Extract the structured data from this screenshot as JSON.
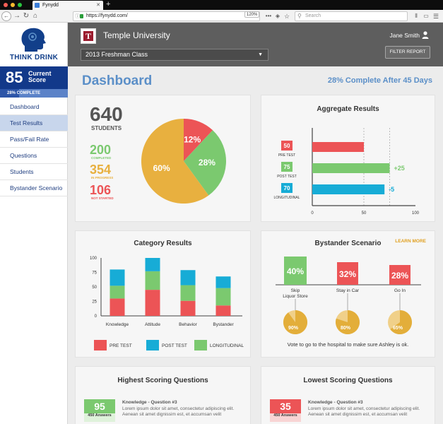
{
  "browser": {
    "tab_title": "Fynydd",
    "url": "https://fynydd.com/",
    "zoom": "120%",
    "search_placeholder": "Search"
  },
  "sidebar": {
    "brand": "THINK DRINK",
    "score_value": "85",
    "score_label": "Current Score",
    "progress_label": "28% COMPLETE",
    "progress": 0.28,
    "items": [
      {
        "label": "Dashboard"
      },
      {
        "label": "Test Results"
      },
      {
        "label": "Pass/Fail Rate"
      },
      {
        "label": "Questions"
      },
      {
        "label": "Students"
      },
      {
        "label": "Bystander Scenario"
      }
    ],
    "active_index": 1
  },
  "header": {
    "university": "Temple University",
    "logo_letter": "T",
    "class_select": "2013 Freshman Class",
    "user_name": "Jane Smith",
    "filter_button": "FILTER REPORT"
  },
  "main": {
    "title": "Dashboard",
    "completion": "28% Complete After 45 Days"
  },
  "students": {
    "total": "640",
    "total_label": "STUDENTS",
    "completed": "200",
    "completed_label": "COMPLETED",
    "in_progress": "354",
    "in_progress_label": "IN PROGRESS",
    "not_started": "106",
    "not_started_label": "NOT STARTED"
  },
  "colors": {
    "red": "#ec5456",
    "green": "#7bc96f",
    "yellow": "#e8b03f",
    "blue": "#17acd6",
    "accent": "#5b8fc8",
    "navy": "#12398a"
  },
  "chart_data": [
    {
      "type": "pie",
      "slices": [
        {
          "label": "12%",
          "value": 12,
          "color": "#ec5456"
        },
        {
          "label": "28%",
          "value": 28,
          "color": "#7bc96f"
        },
        {
          "label": "60%",
          "value": 60,
          "color": "#e8b03f"
        }
      ]
    },
    {
      "type": "bar",
      "orientation": "horizontal",
      "title": "Aggregate Results",
      "categories": [
        "PRE TEST",
        "POST TEST",
        "LONGITUDINAL"
      ],
      "values": [
        50,
        75,
        70
      ],
      "value_labels": [
        "50",
        "75",
        "70"
      ],
      "deltas": [
        "",
        "+25",
        "-5"
      ],
      "colors": [
        "#ec5456",
        "#7bc96f",
        "#17acd6"
      ],
      "xlim": [
        0,
        100
      ],
      "x_ticks": [
        "0",
        "50",
        "100"
      ]
    },
    {
      "type": "bar",
      "stacked": true,
      "title": "Category Results",
      "categories": [
        "Knowledge",
        "Attitude",
        "Behavior",
        "Bystander"
      ],
      "series": [
        {
          "name": "PRE TEST",
          "values": [
            30,
            45,
            26,
            18
          ],
          "color": "#ec5456"
        },
        {
          "name": "LONGITUDINAL",
          "values": [
            22,
            32,
            27,
            30
          ],
          "color": "#7bc96f"
        },
        {
          "name": "POST TEST",
          "values": [
            28,
            23,
            26,
            20
          ],
          "color": "#17acd6"
        }
      ],
      "ylim": [
        0,
        100
      ],
      "y_ticks": [
        "0",
        "25",
        "50",
        "75",
        "100"
      ],
      "legend": [
        "PRE TEST",
        "POST TEST",
        "LONGITUDINAL"
      ]
    },
    {
      "type": "bar",
      "title": "Bystander Scenario",
      "categories": [
        "Skip\nLiquor Store",
        "Stay in Car",
        "Go In"
      ],
      "values": [
        40,
        32,
        28
      ],
      "value_labels": [
        "40%",
        "32%",
        "28%"
      ],
      "colors": [
        "#7bc96f",
        "#ec5456",
        "#ec5456"
      ],
      "sub_pies": [
        {
          "label": "90%",
          "value": 90
        },
        {
          "label": "80%",
          "value": 80
        },
        {
          "label": "65%",
          "value": 65
        }
      ]
    }
  ],
  "bystander": {
    "learn_more": "LEARN MORE",
    "vote_text": "Vote to go to the hospital to make sure Ashley is ok."
  },
  "questions": {
    "highest_title": "Highest Scoring Questions",
    "lowest_title": "Lowest Scoring Questions",
    "highest": {
      "score": "95",
      "answers": "450 Answers",
      "title": "Knowledge - Question #3",
      "body_1": "Lorem ipsum dolor sit amet, consectetur adipiscing elit.",
      "body_2": "Aenean sit amet dignissim est, et accumsan velit"
    },
    "lowest": {
      "score": "35",
      "answers": "450 Answers",
      "title": "Knowledge - Question #3",
      "body_1": "Lorem ipsum dolor sit amet, consectetur adipiscing elit.",
      "body_2": "Aenean sit amet dignissim est, et accumsan velit"
    }
  }
}
